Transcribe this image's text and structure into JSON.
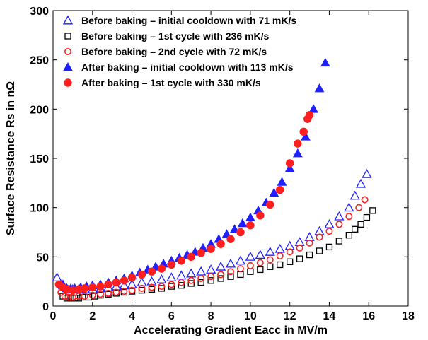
{
  "chart_data": {
    "type": "scatter",
    "xlabel": "Accelerating Gradient Eacc in MV/m",
    "ylabel": "Surface Resistance Rs in nΩ",
    "xlim": [
      0,
      18
    ],
    "ylim": [
      0,
      300
    ],
    "xticks": [
      "0",
      "2",
      "4",
      "6",
      "8",
      "10",
      "12",
      "14",
      "16",
      "18"
    ],
    "yticks": [
      "0",
      "50",
      "100",
      "150",
      "200",
      "250",
      "300"
    ],
    "grid": false,
    "legend_position": "top-left",
    "series": [
      {
        "name": "Before baking – initial cooldown with 71 mK/s",
        "marker": "triangle-open",
        "color": "#1f1fff",
        "x": [
          0.2,
          0.5,
          0.8,
          1.0,
          1.3,
          1.6,
          2.0,
          2.4,
          2.8,
          3.2,
          3.6,
          4.0,
          4.5,
          5.0,
          5.5,
          6.0,
          6.5,
          7.0,
          7.5,
          8.0,
          8.5,
          9.0,
          9.5,
          10.0,
          10.5,
          11.0,
          11.5,
          12.0,
          12.5,
          13.0,
          13.5,
          14.0,
          14.5,
          15.0,
          15.3,
          15.6,
          15.9
        ],
        "y": [
          29,
          21,
          17,
          17,
          17,
          17,
          17,
          18,
          19,
          20,
          21,
          22,
          24,
          25,
          27,
          29,
          31,
          33,
          35,
          37,
          40,
          43,
          46,
          50,
          52,
          55,
          58,
          61,
          65,
          70,
          76,
          83,
          91,
          100,
          112,
          124,
          134
        ]
      },
      {
        "name": "Before baking – 1st cycle with 236 mK/s",
        "marker": "square-open",
        "color": "#000000",
        "x": [
          0.5,
          0.7,
          0.9,
          1.1,
          1.3,
          1.5,
          1.8,
          2.1,
          2.4,
          2.8,
          3.2,
          3.6,
          4.0,
          4.5,
          5.0,
          5.5,
          6.0,
          6.5,
          7.0,
          7.5,
          8.0,
          8.5,
          9.0,
          9.5,
          10.0,
          10.5,
          11.0,
          11.5,
          12.0,
          12.5,
          13.0,
          13.5,
          14.0,
          14.5,
          15.0,
          15.3,
          15.6,
          15.9,
          16.2
        ],
        "y": [
          10,
          8,
          8,
          8,
          8,
          9,
          9,
          10,
          11,
          12,
          13,
          14,
          15,
          16,
          17,
          18,
          20,
          21,
          23,
          24,
          26,
          28,
          30,
          32,
          35,
          37,
          40,
          42,
          45,
          48,
          52,
          56,
          60,
          66,
          72,
          78,
          83,
          90,
          97
        ]
      },
      {
        "name": "Before baking – 2nd cycle with 72 mK/s",
        "marker": "circle-open",
        "color": "#ff1f1f",
        "x": [
          0.4,
          0.6,
          0.8,
          1.0,
          1.3,
          1.6,
          2.0,
          2.4,
          2.8,
          3.2,
          3.6,
          4.0,
          4.5,
          5.0,
          5.5,
          6.0,
          6.5,
          7.0,
          7.5,
          8.0,
          8.5,
          9.0,
          9.5,
          10.0,
          10.5,
          11.0,
          11.5,
          12.0,
          12.5,
          13.0,
          13.5,
          14.0,
          14.5,
          15.0,
          15.5,
          15.8
        ],
        "y": [
          14,
          10,
          9,
          9,
          10,
          10,
          11,
          12,
          13,
          14,
          15,
          16,
          18,
          19,
          20,
          22,
          24,
          26,
          28,
          30,
          32,
          35,
          38,
          41,
          44,
          47,
          51,
          55,
          59,
          64,
          70,
          76,
          83,
          91,
          100,
          108
        ]
      },
      {
        "name": "After baking – initial cooldown with 113 mK/s",
        "marker": "triangle-filled",
        "color": "#1f1fff",
        "x": [
          0.5,
          0.7,
          0.9,
          1.1,
          1.4,
          1.7,
          2.0,
          2.4,
          2.8,
          3.2,
          3.6,
          4.0,
          4.4,
          4.8,
          5.2,
          5.6,
          6.0,
          6.4,
          6.8,
          7.2,
          7.6,
          8.0,
          8.4,
          8.8,
          9.2,
          9.6,
          10.0,
          10.4,
          10.8,
          11.2,
          11.6,
          12.0,
          12.4,
          12.8,
          13.2,
          13.5,
          13.8
        ],
        "y": [
          22,
          18,
          18,
          18,
          19,
          20,
          21,
          22,
          24,
          26,
          28,
          31,
          34,
          37,
          40,
          43,
          46,
          49,
          52,
          55,
          59,
          63,
          68,
          73,
          78,
          84,
          90,
          97,
          105,
          115,
          126,
          140,
          155,
          172,
          200,
          221,
          247
        ]
      },
      {
        "name": "After baking – 1st cycle with 330 mK/s",
        "marker": "circle-filled",
        "color": "#ff1f1f",
        "x": [
          0.3,
          0.5,
          0.7,
          1.0,
          1.3,
          1.6,
          2.0,
          2.4,
          2.8,
          3.2,
          3.6,
          4.0,
          4.5,
          5.0,
          5.5,
          6.0,
          6.5,
          7.0,
          7.5,
          8.0,
          8.5,
          9.0,
          9.5,
          10.0,
          10.5,
          11.0,
          11.5,
          12.0,
          12.4,
          12.7,
          12.9,
          13.0
        ],
        "y": [
          22,
          19,
          17,
          16,
          17,
          18,
          19,
          20,
          22,
          24,
          26,
          29,
          32,
          35,
          38,
          42,
          46,
          50,
          54,
          58,
          63,
          68,
          75,
          82,
          92,
          103,
          118,
          145,
          165,
          177,
          190,
          194
        ]
      }
    ]
  }
}
